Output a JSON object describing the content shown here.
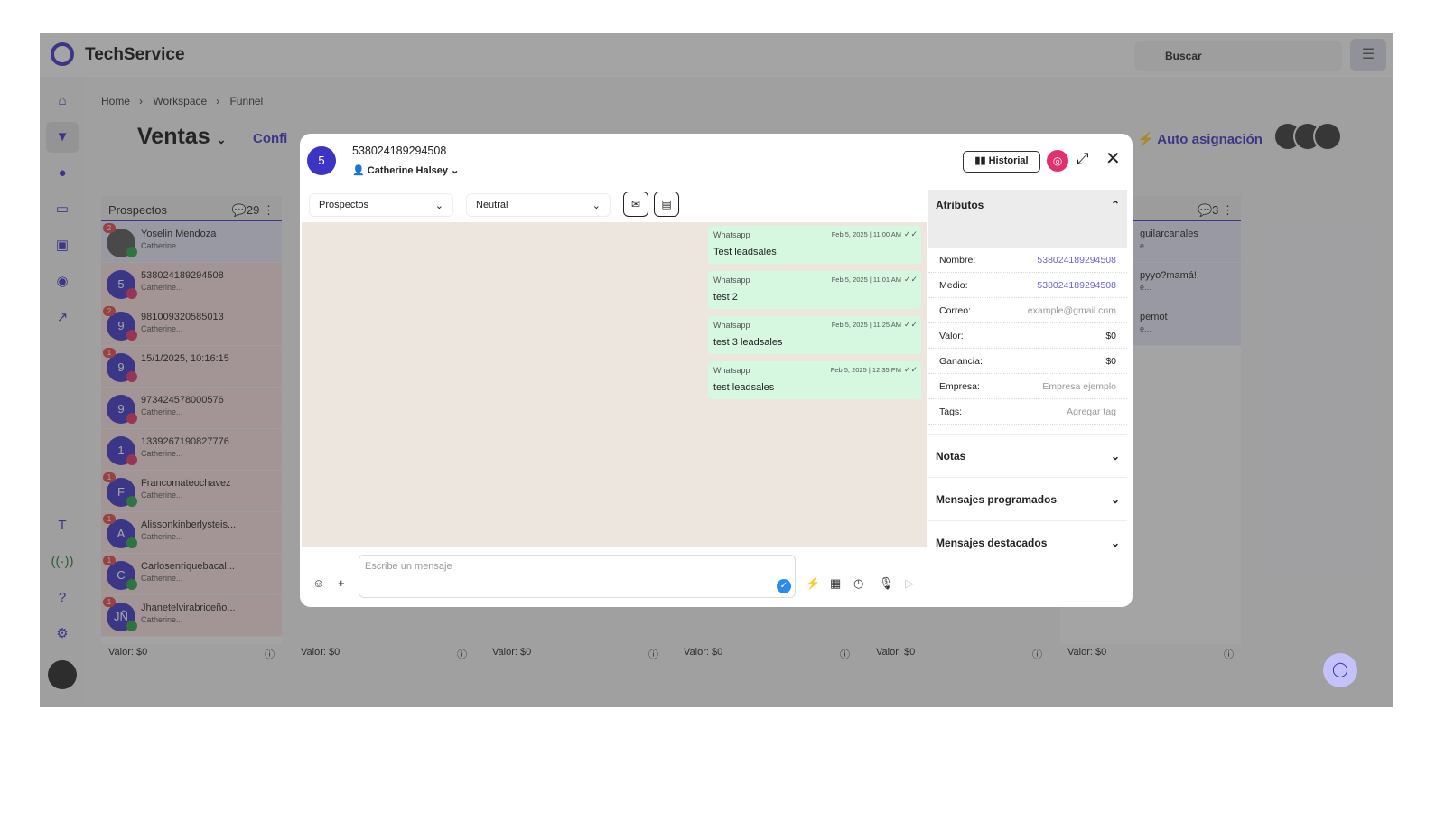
{
  "app": {
    "brand": "TechService",
    "search_placeholder": "Buscar"
  },
  "breadcrumb": [
    "Home",
    "Workspace",
    "Funnel"
  ],
  "board": {
    "title": "Ventas",
    "config_label": "Confi",
    "auto_label": "Auto asignación"
  },
  "columns": [
    {
      "title": "Prospectos",
      "count": "29",
      "footer": "Valor: $0",
      "cards": [
        {
          "initial": "",
          "name": "Yoselin Mendoza",
          "sub": "Catherine...",
          "badge": "2",
          "channel": "whatsapp"
        },
        {
          "initial": "5",
          "name": "538024189294508",
          "sub": "Catherine...",
          "badge": "",
          "channel": "instagram"
        },
        {
          "initial": "9",
          "name": "981009320585013",
          "sub": "Catherine...",
          "badge": "2",
          "channel": "instagram"
        },
        {
          "initial": "9",
          "name": "15/1/2025, 10:16:15",
          "sub": "",
          "badge": "1",
          "channel": "instagram"
        },
        {
          "initial": "9",
          "name": "973424578000576",
          "sub": "Catherine...",
          "badge": "",
          "channel": "instagram"
        },
        {
          "initial": "1",
          "name": "1339267190827776",
          "sub": "Catherine...",
          "badge": "",
          "channel": "instagram"
        },
        {
          "initial": "F",
          "name": "Francomateochavez",
          "sub": "Catherine...",
          "badge": "1",
          "channel": "whatsapp"
        },
        {
          "initial": "A",
          "name": "Alissonkinberlysteis...",
          "sub": "Catherine...",
          "badge": "1",
          "channel": "whatsapp"
        },
        {
          "initial": "C",
          "name": "Carlosenriquebacal...",
          "sub": "Catherine...",
          "badge": "1",
          "channel": "whatsapp"
        },
        {
          "initial": "JÑ",
          "name": "Jhanetelvirabriceño...",
          "sub": "Catherine...",
          "badge": "1",
          "channel": "whatsapp"
        }
      ]
    },
    {
      "footer": "Valor: $0"
    },
    {
      "footer": "Valor: $0"
    },
    {
      "footer": "Valor: $0"
    },
    {
      "footer": "Valor: $0"
    },
    {
      "count": "3",
      "footer": "Valor: $0",
      "cards": [
        {
          "name": "guilarcanales",
          "sub": "e..."
        },
        {
          "name": "pyyo?mamá!",
          "sub": "e..."
        },
        {
          "name": "pemot",
          "sub": "e..."
        }
      ]
    }
  ],
  "modal": {
    "avatar_initial": "5",
    "contact_id": "538024189294508",
    "agent": "Catherine Halsey",
    "historial_label": "Historial",
    "stage": "Prospectos",
    "sentiment": "Neutral",
    "messages": [
      {
        "source": "Whatsapp",
        "time": "Feb 5, 2025 | 11:00 AM",
        "text": "Test leadsales"
      },
      {
        "source": "Whatsapp",
        "time": "Feb 5, 2025 | 11:01 AM",
        "text": "test 2"
      },
      {
        "source": "Whatsapp",
        "time": "Feb 5, 2025 | 11:25 AM",
        "text": "test 3 leadsales"
      },
      {
        "source": "Whatsapp",
        "time": "Feb 5, 2025 | 12:35 PM",
        "text": "test leadsales"
      }
    ],
    "input_placeholder": "Escribe un mensaje",
    "attributes": {
      "title": "Atributos",
      "rows": [
        {
          "label": "Nombre:",
          "value": "538024189294508"
        },
        {
          "label": "Medio:",
          "value": "538024189294508"
        },
        {
          "label": "Correo:",
          "value": "example@gmail.com"
        },
        {
          "label": "Valor:",
          "value": "$0"
        },
        {
          "label": "Ganancia:",
          "value": "$0"
        },
        {
          "label": "Empresa:",
          "value": "Empresa ejemplo"
        },
        {
          "label": "Tags:",
          "value": "Agregar tag"
        }
      ]
    },
    "sections": [
      "Notas",
      "Mensajes programados",
      "Mensajes destacados"
    ]
  },
  "colors": {
    "accent": "#3b34c4",
    "bubble": "#d6f8e1",
    "whatsapp": "#25a244",
    "instagram": "#e1306c"
  }
}
